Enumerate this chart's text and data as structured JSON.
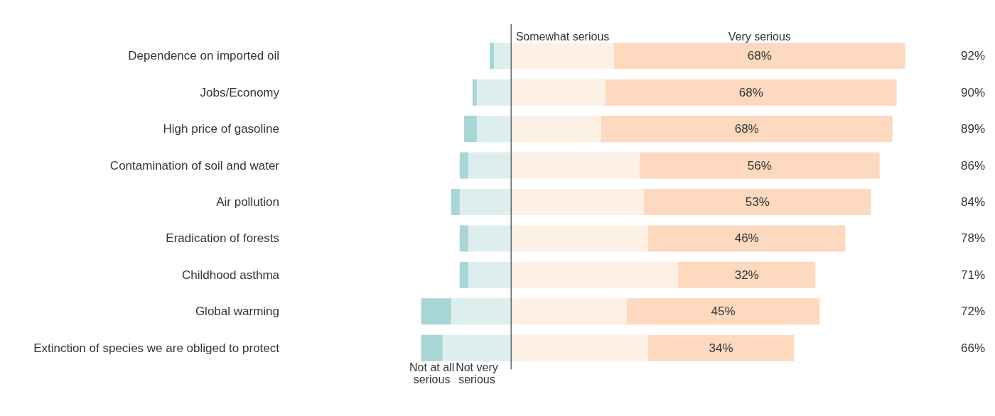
{
  "chart_data": {
    "type": "bar",
    "orientation": "horizontal",
    "stacked": true,
    "categories": [
      "Dependence on imported oil",
      "Jobs/Economy",
      "High price of gasoline",
      "Contamination of soil and water",
      "Air pollution",
      "Eradication of forests",
      "Childhood asthma",
      "Global warming",
      "Extinction of species we are obliged to protect"
    ],
    "series": [
      {
        "name": "Not very serious",
        "color": "#ddeeee",
        "values": [
          -4,
          -8,
          -8,
          -10,
          -12,
          -10,
          -10,
          -14,
          -16
        ]
      },
      {
        "name": "Not at all serious",
        "color": "#a8d5d5",
        "values": [
          -1,
          -1,
          -3,
          -2,
          -2,
          -2,
          -2,
          -7,
          -5
        ]
      },
      {
        "name": "Somewhat serious",
        "color": "#fdf0e5",
        "values": [
          24,
          22,
          21,
          30,
          31,
          32,
          39,
          27,
          32
        ]
      },
      {
        "name": "Very serious",
        "color": "#fcd9bf",
        "values": [
          68,
          68,
          68,
          56,
          53,
          46,
          32,
          45,
          34
        ],
        "value_labels": [
          "68%",
          "68%",
          "68%",
          "56%",
          "53%",
          "46%",
          "32%",
          "45%",
          "34%"
        ]
      }
    ],
    "annotations": [
      "92%",
      "90%",
      "89%",
      "86%",
      "84%",
      "78%",
      "71%",
      "72%",
      "66%"
    ],
    "legend": false
  }
}
